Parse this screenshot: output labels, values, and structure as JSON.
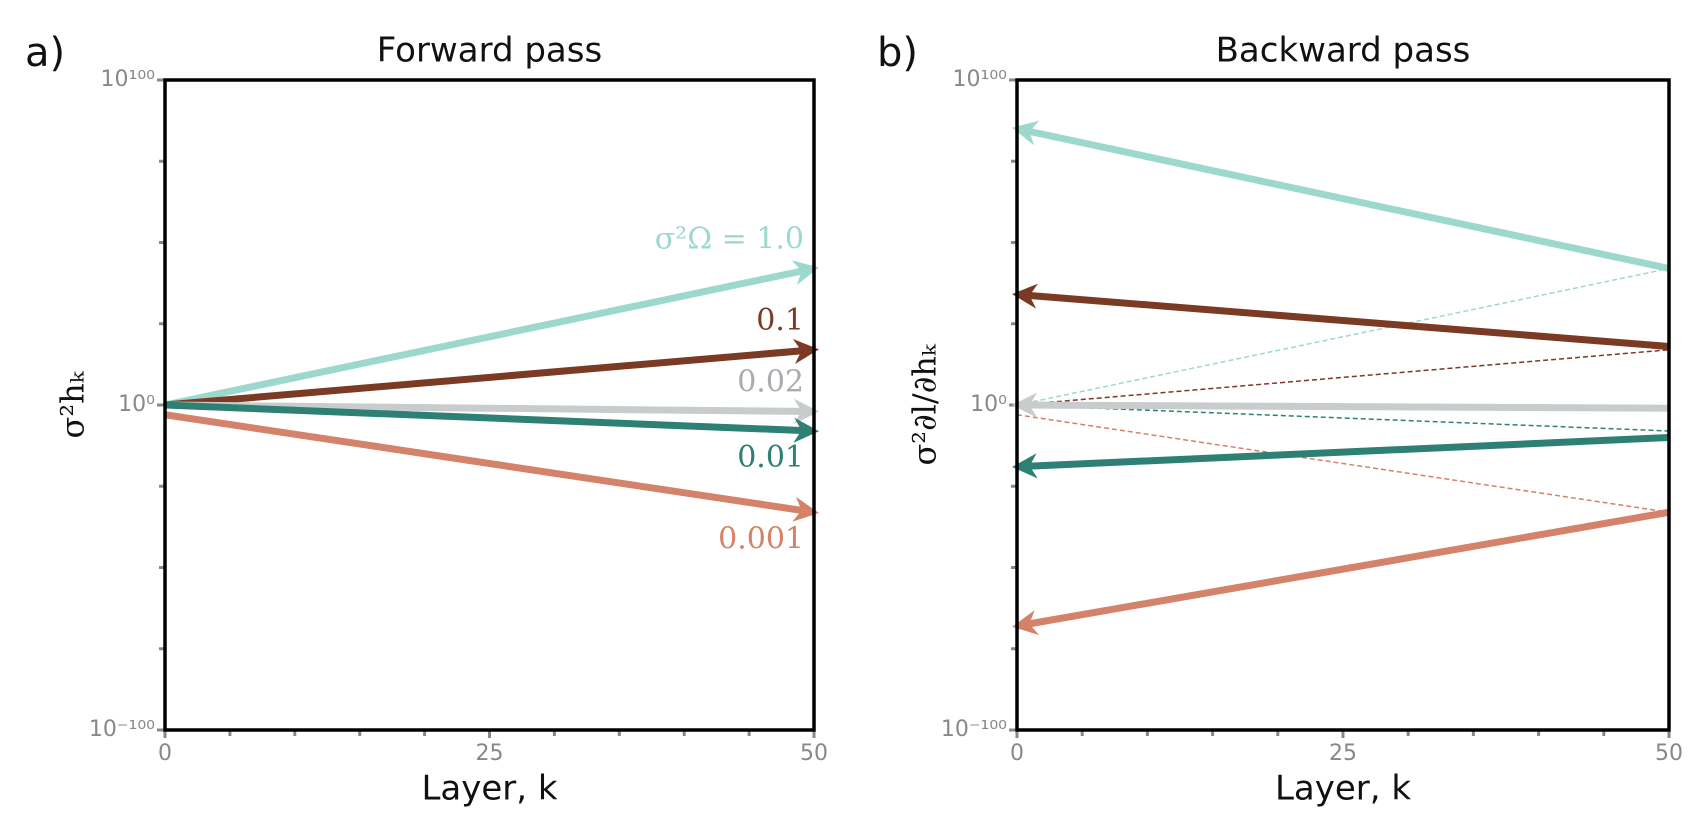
{
  "chart_data": [
    {
      "type": "line",
      "panel_label": "a)",
      "title": "Forward pass",
      "xlabel": "Layer, k",
      "ylabel": "σ²hₖ",
      "log_y": true,
      "xlim": [
        0,
        50
      ],
      "ylim": [
        1e-100,
        1e+100
      ],
      "xticks": [
        0,
        25,
        50
      ],
      "xticks_minor": [
        5,
        10,
        15,
        20,
        30,
        35,
        40,
        45
      ],
      "yticks": [
        {
          "value": 1e-100,
          "label": "10⁻¹⁰⁰"
        },
        {
          "value": 1,
          "label": "10⁰"
        },
        {
          "value": 1e+100,
          "label": "10¹⁰⁰"
        }
      ],
      "yticks_minor": [
        1e-75,
        1e-50,
        1e-25,
        1e+25,
        1e+50,
        1e+75
      ],
      "series": [
        {
          "name": "σ²Ω = 1.0",
          "color": "#9dd8cf",
          "x": [
            0,
            50
          ],
          "values": [
            1,
            1e+42
          ],
          "direction": "forward"
        },
        {
          "name": "0.1",
          "color": "#7b3a24",
          "x": [
            0,
            50
          ],
          "values": [
            1,
            1e+17
          ],
          "direction": "forward"
        },
        {
          "name": "0.02",
          "color": "#c8cccc",
          "x": [
            0,
            50
          ],
          "values": [
            1,
            0.01
          ],
          "direction": "forward"
        },
        {
          "name": "0.01",
          "color": "#2f8074",
          "x": [
            0,
            50
          ],
          "values": [
            1,
            1e-08
          ],
          "direction": "forward"
        },
        {
          "name": "0.001",
          "color": "#d4826a",
          "x": [
            0,
            50
          ],
          "values": [
            0.001,
            1e-33
          ],
          "direction": "forward"
        }
      ]
    },
    {
      "type": "line",
      "panel_label": "b)",
      "title": "Backward pass",
      "xlabel": "Layer, k",
      "ylabel": "σ²∂l/∂hₖ",
      "log_y": true,
      "xlim": [
        0,
        50
      ],
      "ylim": [
        1e-100,
        1e+100
      ],
      "xticks": [
        0,
        25,
        50
      ],
      "xticks_minor": [
        5,
        10,
        15,
        20,
        30,
        35,
        40,
        45
      ],
      "yticks": [
        {
          "value": 1e-100,
          "label": "10⁻¹⁰⁰"
        },
        {
          "value": 1,
          "label": "10⁰"
        },
        {
          "value": 1e+100,
          "label": "10¹⁰⁰"
        }
      ],
      "yticks_minor": [
        1e-75,
        1e-50,
        1e-25,
        1e+25,
        1e+50,
        1e+75
      ],
      "series": [
        {
          "color": "#9dd8cf",
          "x": [
            0,
            50
          ],
          "values": [
            1,
            1e+42
          ],
          "style": "dashed"
        },
        {
          "color": "#7b3a24",
          "x": [
            0,
            50
          ],
          "values": [
            1,
            1e+17
          ],
          "style": "dashed"
        },
        {
          "color": "#2f8074",
          "x": [
            0,
            50
          ],
          "values": [
            1,
            1e-08
          ],
          "style": "dashed"
        },
        {
          "color": "#d4826a",
          "x": [
            0,
            50
          ],
          "values": [
            0.001,
            1e-33
          ],
          "style": "dashed"
        },
        {
          "color": "#9dd8cf",
          "x": [
            0,
            50
          ],
          "values": [
            1e+85,
            1e+42
          ],
          "direction": "backward"
        },
        {
          "color": "#7b3a24",
          "x": [
            0,
            50
          ],
          "values": [
            1e+34,
            1e+18
          ],
          "direction": "backward"
        },
        {
          "color": "#c8cccc",
          "x": [
            0,
            50
          ],
          "values": [
            1,
            0.1
          ],
          "direction": "backward"
        },
        {
          "color": "#2f8074",
          "x": [
            0,
            50
          ],
          "values": [
            1e-19,
            1e-10
          ],
          "direction": "backward"
        },
        {
          "color": "#d4826a",
          "x": [
            0,
            50
          ],
          "values": [
            1e-68,
            1e-33
          ],
          "direction": "backward"
        }
      ]
    }
  ]
}
